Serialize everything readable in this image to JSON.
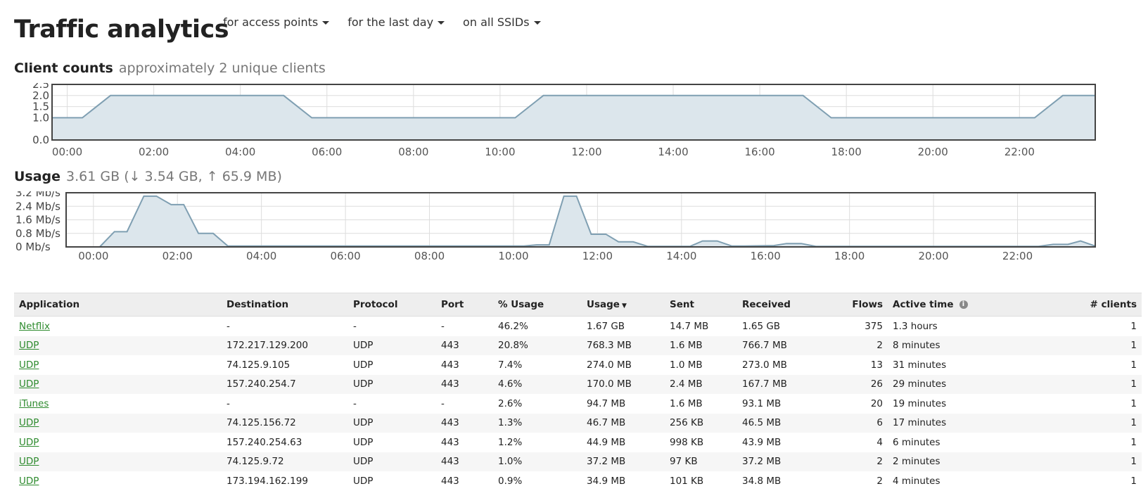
{
  "header": {
    "title": "Traffic analytics",
    "filters": [
      {
        "label": "for access points"
      },
      {
        "label": "for the last day"
      },
      {
        "label": "on all SSIDs"
      }
    ]
  },
  "client_counts": {
    "title": "Client counts",
    "subtitle": "approximately 2 unique clients"
  },
  "usage": {
    "title": "Usage",
    "subtitle": "3.61 GB (↓ 3.54 GB, ↑ 65.9 MB)"
  },
  "colors": {
    "line": "#7f9fb2",
    "fill": "#dce6ec",
    "border": "#444444",
    "grid": "#dddddd",
    "link": "#2e8b2e"
  },
  "chart_data": [
    {
      "type": "area",
      "name": "client-counts",
      "x_ticks": [
        "00:00",
        "02:00",
        "04:00",
        "06:00",
        "08:00",
        "10:00",
        "12:00",
        "14:00",
        "16:00",
        "18:00",
        "20:00",
        "22:00"
      ],
      "y_ticks": [
        "0.0",
        "1.0",
        "1.5",
        "2.0",
        "2.5"
      ],
      "y_tick_values": [
        0,
        1,
        1.5,
        2,
        2.5
      ],
      "xlim": [
        -0.35,
        23.75
      ],
      "ylim": [
        0,
        2.5
      ],
      "x": [
        -0.35,
        0.35,
        1.0,
        5.0,
        5.65,
        10.35,
        11.0,
        17.0,
        17.65,
        22.35,
        23.0,
        23.75
      ],
      "values": [
        1,
        1,
        2,
        2,
        1,
        1,
        2,
        2,
        1,
        1,
        2,
        2
      ]
    },
    {
      "type": "area",
      "name": "usage",
      "x_ticks": [
        "00:00",
        "02:00",
        "04:00",
        "06:00",
        "08:00",
        "10:00",
        "12:00",
        "14:00",
        "16:00",
        "18:00",
        "20:00",
        "22:00"
      ],
      "y_ticks": [
        "0 Mb/s",
        "0.8 Mb/s",
        "1.6 Mb/s",
        "2.4 Mb/s",
        "3.2 Mb/s"
      ],
      "y_tick_values": [
        0,
        0.8,
        1.6,
        2.4,
        3.2
      ],
      "xlim": [
        -0.65,
        23.85
      ],
      "ylim": [
        0,
        3.2
      ],
      "x": [
        -0.65,
        0.15,
        0.5,
        0.8,
        1.2,
        1.5,
        1.85,
        2.15,
        2.5,
        2.85,
        3.2,
        10.25,
        10.55,
        10.85,
        11.2,
        11.5,
        11.85,
        12.2,
        12.5,
        12.85,
        13.2,
        14.2,
        14.5,
        14.85,
        15.2,
        15.5,
        16.2,
        16.5,
        16.85,
        17.2,
        22.5,
        22.85,
        23.2,
        23.5,
        23.85
      ],
      "values": [
        0,
        0,
        0.9,
        0.9,
        3.0,
        3.0,
        2.5,
        2.5,
        0.8,
        0.8,
        0.05,
        0.05,
        0.12,
        0.12,
        3.0,
        3.0,
        0.75,
        0.75,
        0.3,
        0.3,
        0.03,
        0.03,
        0.35,
        0.35,
        0.05,
        0.05,
        0.08,
        0.2,
        0.2,
        0.03,
        0.03,
        0.15,
        0.15,
        0.35,
        0.05
      ]
    }
  ],
  "table": {
    "columns": [
      {
        "label": "Application"
      },
      {
        "label": "Destination"
      },
      {
        "label": "Protocol"
      },
      {
        "label": "Port"
      },
      {
        "label": "% Usage"
      },
      {
        "label": "Usage"
      },
      {
        "label": "Sent"
      },
      {
        "label": "Received"
      },
      {
        "label": "Flows"
      },
      {
        "label": "Active time"
      },
      {
        "label": "# clients"
      }
    ],
    "sort_indicator": "▼",
    "rows": [
      {
        "application": "Netflix",
        "destination": "-",
        "protocol": "-",
        "port": "-",
        "pct": "46.2%",
        "usage": "1.67 GB",
        "sent": "14.7 MB",
        "received": "1.65 GB",
        "flows": "375",
        "active": "1.3 hours",
        "clients": "1"
      },
      {
        "application": "UDP",
        "destination": "172.217.129.200",
        "protocol": "UDP",
        "port": "443",
        "pct": "20.8%",
        "usage": "768.3 MB",
        "sent": "1.6 MB",
        "received": "766.7 MB",
        "flows": "2",
        "active": "8 minutes",
        "clients": "1"
      },
      {
        "application": "UDP",
        "destination": "74.125.9.105",
        "protocol": "UDP",
        "port": "443",
        "pct": "7.4%",
        "usage": "274.0 MB",
        "sent": "1.0 MB",
        "received": "273.0 MB",
        "flows": "13",
        "active": "31 minutes",
        "clients": "1"
      },
      {
        "application": "UDP",
        "destination": "157.240.254.7",
        "protocol": "UDP",
        "port": "443",
        "pct": "4.6%",
        "usage": "170.0 MB",
        "sent": "2.4 MB",
        "received": "167.7 MB",
        "flows": "26",
        "active": "29 minutes",
        "clients": "1"
      },
      {
        "application": "iTunes",
        "destination": "-",
        "protocol": "-",
        "port": "-",
        "pct": "2.6%",
        "usage": "94.7 MB",
        "sent": "1.6 MB",
        "received": "93.1 MB",
        "flows": "20",
        "active": "19 minutes",
        "clients": "1"
      },
      {
        "application": "UDP",
        "destination": "74.125.156.72",
        "protocol": "UDP",
        "port": "443",
        "pct": "1.3%",
        "usage": "46.7 MB",
        "sent": "256 KB",
        "received": "46.5 MB",
        "flows": "6",
        "active": "17 minutes",
        "clients": "1"
      },
      {
        "application": "UDP",
        "destination": "157.240.254.63",
        "protocol": "UDP",
        "port": "443",
        "pct": "1.2%",
        "usage": "44.9 MB",
        "sent": "998 KB",
        "received": "43.9 MB",
        "flows": "4",
        "active": "6 minutes",
        "clients": "1"
      },
      {
        "application": "UDP",
        "destination": "74.125.9.72",
        "protocol": "UDP",
        "port": "443",
        "pct": "1.0%",
        "usage": "37.2 MB",
        "sent": "97 KB",
        "received": "37.2 MB",
        "flows": "2",
        "active": "2 minutes",
        "clients": "1"
      },
      {
        "application": "UDP",
        "destination": "173.194.162.199",
        "protocol": "UDP",
        "port": "443",
        "pct": "0.9%",
        "usage": "34.9 MB",
        "sent": "101 KB",
        "received": "34.8 MB",
        "flows": "2",
        "active": "4 minutes",
        "clients": "1"
      }
    ]
  }
}
